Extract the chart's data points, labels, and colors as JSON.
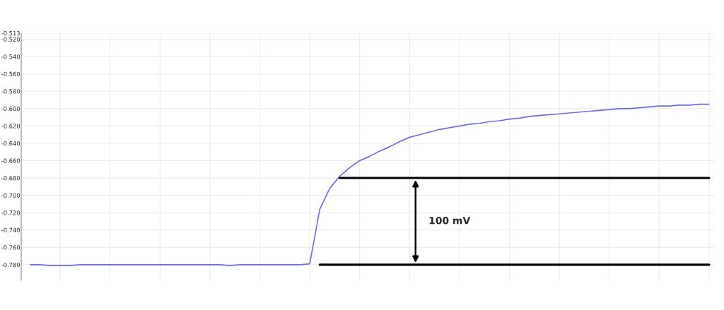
{
  "chart_data": {
    "type": "line",
    "categories": [
      null,
      null,
      null,
      null,
      null,
      null,
      null,
      null,
      null,
      null,
      null,
      null,
      null,
      null,
      null,
      null,
      null,
      null,
      null,
      null,
      null,
      null,
      null,
      null,
      null,
      null,
      null,
      null,
      null,
      null,
      null,
      null,
      null,
      null,
      null,
      null,
      null,
      null,
      null,
      null,
      null,
      null,
      null,
      null,
      null,
      null,
      null,
      null,
      null,
      null,
      null,
      null,
      null,
      null,
      null,
      null,
      null,
      null,
      null,
      null,
      null,
      null,
      null,
      null,
      null,
      null,
      null,
      null,
      null
    ],
    "series": [
      {
        "color": "#6c6ce0",
        "values": [
          -0.78,
          -0.78,
          -0.781,
          -0.781,
          -0.781,
          -0.78,
          -0.78,
          -0.78,
          -0.78,
          -0.78,
          -0.78,
          -0.78,
          -0.78,
          -0.78,
          -0.78,
          -0.78,
          -0.78,
          -0.78,
          -0.78,
          -0.78,
          -0.781,
          -0.78,
          -0.78,
          -0.78,
          -0.78,
          -0.78,
          -0.78,
          -0.78,
          -0.779,
          -0.716,
          -0.692,
          -0.678,
          -0.668,
          -0.66,
          -0.655,
          -0.649,
          -0.644,
          -0.638,
          -0.633,
          -0.63,
          -0.627,
          -0.624,
          -0.622,
          -0.62,
          -0.618,
          -0.617,
          -0.615,
          -0.614,
          -0.612,
          -0.611,
          -0.609,
          -0.608,
          -0.607,
          -0.606,
          -0.605,
          -0.604,
          -0.603,
          -0.602,
          -0.601,
          -0.6,
          -0.6,
          -0.599,
          -0.598,
          -0.597,
          -0.597,
          -0.596,
          -0.596,
          -0.595,
          -0.595
        ]
      },
      {
        "color": "#000000",
        "values": [
          null,
          null,
          null,
          null,
          null,
          null,
          null,
          null,
          null,
          null,
          null,
          null,
          null,
          null,
          null,
          null,
          null,
          null,
          null,
          null,
          null,
          null,
          null,
          null,
          null,
          null,
          null,
          null,
          null,
          null,
          null,
          -0.68,
          -0.68,
          -0.68,
          -0.68,
          -0.68,
          -0.68,
          -0.68,
          -0.68,
          -0.68,
          -0.68,
          -0.68,
          -0.68,
          -0.68,
          -0.68,
          -0.68,
          -0.68,
          -0.68,
          -0.68,
          -0.68,
          -0.68,
          -0.68,
          -0.68,
          -0.68,
          -0.68,
          -0.68,
          -0.68,
          -0.68,
          -0.68,
          -0.68,
          -0.68,
          -0.68,
          -0.68,
          -0.68,
          -0.68,
          -0.68,
          -0.68,
          -0.68,
          -0.68
        ]
      },
      {
        "color": "#000000",
        "values": [
          null,
          null,
          null,
          null,
          null,
          null,
          null,
          null,
          null,
          null,
          null,
          null,
          null,
          null,
          null,
          null,
          null,
          null,
          null,
          null,
          null,
          null,
          null,
          null,
          null,
          null,
          null,
          null,
          null,
          -0.78,
          -0.78,
          -0.78,
          -0.78,
          -0.78,
          -0.78,
          -0.78,
          -0.78,
          -0.78,
          -0.78,
          -0.78,
          -0.78,
          -0.78,
          -0.78,
          -0.78,
          -0.78,
          -0.78,
          -0.78,
          -0.78,
          -0.78,
          -0.78,
          -0.78,
          -0.78,
          -0.78,
          -0.78,
          -0.78,
          -0.78,
          -0.78,
          -0.78,
          -0.78,
          -0.78,
          -0.78,
          -0.78,
          -0.78,
          -0.78,
          -0.78,
          -0.78,
          -0.78,
          -0.78,
          -0.78
        ]
      }
    ],
    "annotations": [
      "100 mV"
    ],
    "ylim": [
      -0.798,
      -0.513
    ],
    "yticks": [
      {
        "value": -0.513,
        "label": "-0.513"
      },
      {
        "value": -0.52,
        "label": "-0.520"
      },
      {
        "value": -0.54,
        "label": "-0.540"
      },
      {
        "value": -0.56,
        "label": "-0.560"
      },
      {
        "value": -0.58,
        "label": "-0.580"
      },
      {
        "value": -0.6,
        "label": "-0.600"
      },
      {
        "value": -0.62,
        "label": "-0.620"
      },
      {
        "value": -0.64,
        "label": "-0.640"
      },
      {
        "value": -0.66,
        "label": "-0.660"
      },
      {
        "value": -0.68,
        "label": "-0.680"
      },
      {
        "value": -0.7,
        "label": "-0.700"
      },
      {
        "value": -0.72,
        "label": "-0.720"
      },
      {
        "value": -0.74,
        "label": "-0.740"
      },
      {
        "value": -0.76,
        "label": "-0.760"
      },
      {
        "value": -0.78,
        "label": "-0.780"
      }
    ],
    "tick_labels": "y",
    "grid": true
  }
}
